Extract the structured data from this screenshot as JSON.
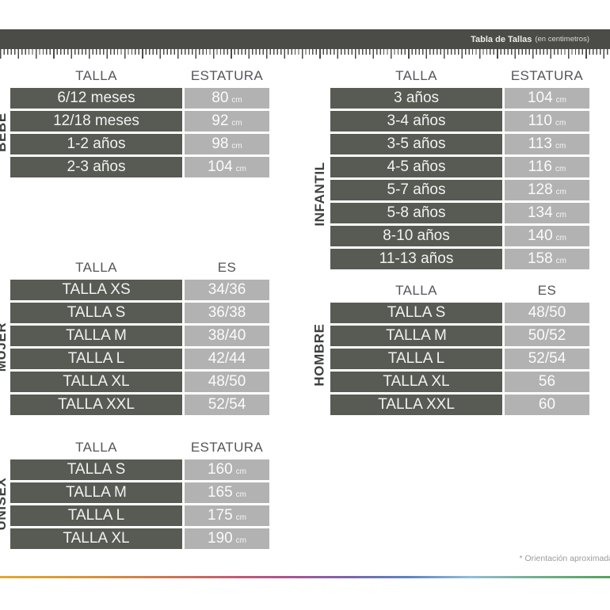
{
  "titlebar": {
    "title": "Tabla de Tallas",
    "subtitle": "(en centimetros)"
  },
  "sections": {
    "bebe": {
      "label": "BEBE",
      "headers": {
        "col1": "TALLA",
        "col2": "ESTATURA"
      },
      "rows": [
        {
          "talla": "6/12 meses",
          "value": "80",
          "unit": "cm"
        },
        {
          "talla": "12/18 meses",
          "value": "92",
          "unit": "cm"
        },
        {
          "talla": "1-2 años",
          "value": "98",
          "unit": "cm"
        },
        {
          "talla": "2-3 años",
          "value": "104",
          "unit": "cm"
        }
      ]
    },
    "infantil": {
      "label": "INFANTIL",
      "headers": {
        "col1": "TALLA",
        "col2": "ESTATURA"
      },
      "rows": [
        {
          "talla": "3 años",
          "value": "104",
          "unit": "cm"
        },
        {
          "talla": "3-4 años",
          "value": "110",
          "unit": "cm"
        },
        {
          "talla": "3-5 años",
          "value": "113",
          "unit": "cm"
        },
        {
          "talla": "4-5 años",
          "value": "116",
          "unit": "cm"
        },
        {
          "talla": "5-7 años",
          "value": "128",
          "unit": "cm"
        },
        {
          "talla": "5-8 años",
          "value": "134",
          "unit": "cm"
        },
        {
          "talla": "8-10 años",
          "value": "140",
          "unit": "cm"
        },
        {
          "talla": "11-13 años",
          "value": "158",
          "unit": "cm"
        }
      ]
    },
    "mujer": {
      "label": "MUJER",
      "headers": {
        "col1": "TALLA",
        "col2": "ES"
      },
      "rows": [
        {
          "talla": "TALLA XS",
          "value": "34/36"
        },
        {
          "talla": "TALLA S",
          "value": "36/38"
        },
        {
          "talla": "TALLA M",
          "value": "38/40"
        },
        {
          "talla": "TALLA L",
          "value": "42/44"
        },
        {
          "talla": "TALLA XL",
          "value": "48/50"
        },
        {
          "talla": "TALLA XXL",
          "value": "52/54"
        }
      ]
    },
    "hombre": {
      "label": "HOMBRE",
      "headers": {
        "col1": "TALLA",
        "col2": "ES"
      },
      "rows": [
        {
          "talla": "TALLA S",
          "value": "48/50"
        },
        {
          "talla": "TALLA M",
          "value": "50/52"
        },
        {
          "talla": "TALLA L",
          "value": "52/54"
        },
        {
          "talla": "TALLA XL",
          "value": "56"
        },
        {
          "talla": "TALLA XXL",
          "value": "60"
        }
      ]
    },
    "unisex": {
      "label": "UNISEX",
      "headers": {
        "col1": "TALLA",
        "col2": "ESTATURA"
      },
      "rows": [
        {
          "talla": "TALLA S",
          "value": "160",
          "unit": "cm"
        },
        {
          "talla": "TALLA M",
          "value": "165",
          "unit": "cm"
        },
        {
          "talla": "TALLA L",
          "value": "175",
          "unit": "cm"
        },
        {
          "talla": "TALLA XL",
          "value": "190",
          "unit": "cm"
        }
      ]
    }
  },
  "footnote": "* Orientación aproximada",
  "colors": {
    "bar": "#4b4b47",
    "cell_dark": "#575b54",
    "cell_light": "#b2b2b2",
    "header_text": "#55565a",
    "rainbow": [
      "#e2a92b",
      "#c25a77",
      "#7d64ae",
      "#5b85c6",
      "#93bedb",
      "#57a25c"
    ]
  }
}
